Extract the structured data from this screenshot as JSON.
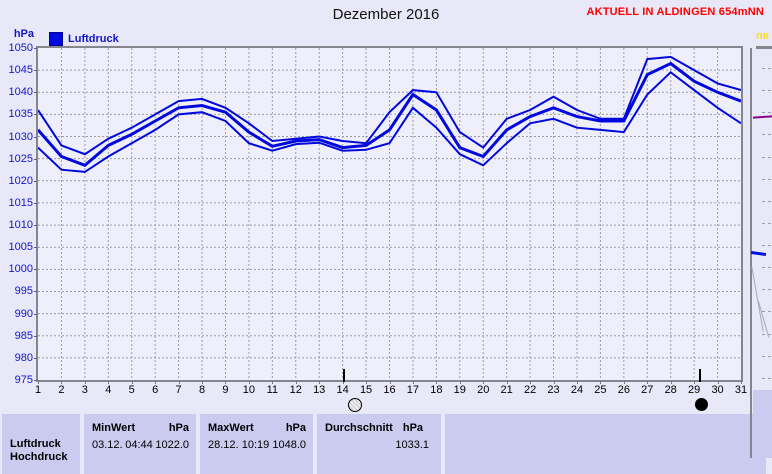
{
  "header": {
    "title": "Dezember 2016",
    "station_note": "AKTUELL IN ALDINGEN 654mNN"
  },
  "legend": {
    "unit": "hPa",
    "label": "Luftdruck"
  },
  "chart_data": {
    "type": "line",
    "title": "Dezember 2016",
    "ylabel": "hPa",
    "xlabel": "",
    "ylim": [
      975,
      1050
    ],
    "grid": "dashed",
    "legend_entries": [
      "Luftdruck"
    ],
    "legend_position": "top-left",
    "line_color": "#0008DD",
    "y_ticks": [
      1050,
      1045,
      1040,
      1035,
      1030,
      1025,
      1020,
      1015,
      1010,
      1005,
      1000,
      995,
      990,
      985,
      980,
      975
    ],
    "x_ticks": [
      1,
      2,
      3,
      4,
      5,
      6,
      7,
      8,
      9,
      10,
      11,
      12,
      13,
      14,
      15,
      16,
      17,
      18,
      19,
      20,
      21,
      22,
      23,
      24,
      25,
      26,
      27,
      28,
      29,
      30,
      31
    ],
    "x": [
      1,
      2,
      3,
      4,
      5,
      6,
      7,
      8,
      9,
      10,
      11,
      12,
      13,
      14,
      15,
      16,
      17,
      18,
      19,
      20,
      21,
      22,
      23,
      24,
      25,
      26,
      27,
      28,
      29,
      30,
      31
    ],
    "series": [
      {
        "name": "luftdruck-tagesmax",
        "width": 2,
        "values": [
          1036,
          1028,
          1026,
          1029.5,
          1032,
          1035,
          1038,
          1038.5,
          1036.5,
          1033,
          1029,
          1029.5,
          1030,
          1029,
          1028.5,
          1035.5,
          1040.5,
          1040,
          1031,
          1027.5,
          1034,
          1036,
          1039,
          1036,
          1034,
          1034,
          1047.5,
          1048,
          1045,
          1042,
          1040.5
        ]
      },
      {
        "name": "luftdruck-tagesmittel",
        "width": 3,
        "values": [
          1031.5,
          1025.5,
          1023.5,
          1028,
          1030.5,
          1033.5,
          1036.5,
          1037,
          1035.5,
          1031,
          1027.8,
          1029,
          1029.3,
          1027.5,
          1028,
          1031.5,
          1039.5,
          1036,
          1027.5,
          1025.5,
          1031.5,
          1034.5,
          1036.5,
          1034.5,
          1033.5,
          1033.5,
          1044,
          1046.5,
          1042.5,
          1040,
          1038
        ]
      },
      {
        "name": "luftdruck-tagesmin",
        "width": 2,
        "values": [
          1027.5,
          1022.5,
          1022,
          1025.5,
          1028.5,
          1031.5,
          1035,
          1035.5,
          1033.5,
          1028.5,
          1026.8,
          1028.3,
          1028.6,
          1026.8,
          1027,
          1028.5,
          1036.5,
          1032,
          1026,
          1023.5,
          1028.5,
          1033,
          1034,
          1032,
          1031.5,
          1031,
          1039.5,
          1044.5,
          1040.5,
          1036.5,
          1033
        ]
      }
    ],
    "moon_markers": [
      {
        "day": 14,
        "phase": "full-moon"
      },
      {
        "day": 29.2,
        "phase": "new-moon"
      }
    ]
  },
  "table": {
    "row_label": "Luftdruck",
    "row_label2_clipped": "Hochdruck",
    "min": {
      "title": "MinWert",
      "unit": "hPa",
      "date": "03.12.",
      "time": "04:44",
      "value": "1022.0"
    },
    "max": {
      "title": "MaxWert",
      "unit": "hPa",
      "date": "28.12.",
      "time": "10:19",
      "value": "1048.0"
    },
    "avg": {
      "title": "Durchschnitt",
      "unit": "hPa",
      "value": "1033.1"
    }
  },
  "next_panel": {
    "label_fragment": "ne"
  },
  "colors": {
    "page_bg": "#E8E8F8",
    "plot_bg": "#EFEFFC",
    "table_cell_bg": "#CBCBF0",
    "line_blue": "#0008DD",
    "axis_label_blue": "#1515CC",
    "banner_red": "#FF0000",
    "next_panel_yellow": "#FFE000",
    "grid_gray": "#9C9CA8",
    "border_gray": "#85858D"
  }
}
